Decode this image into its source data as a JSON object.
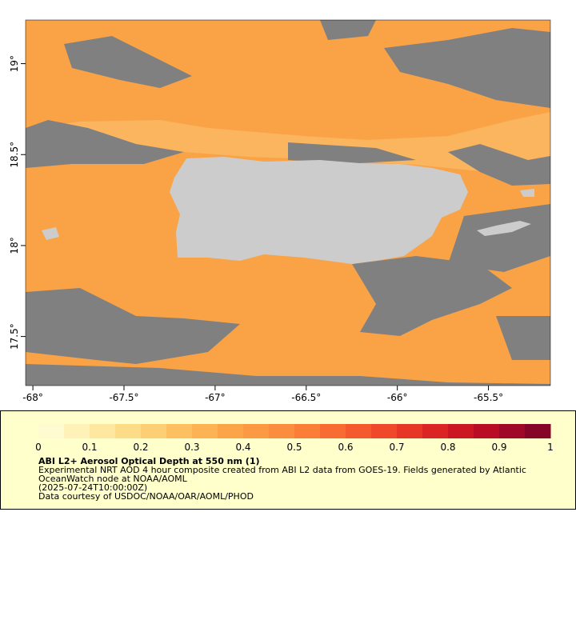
{
  "map": {
    "lonlim": [
      -68.04,
      -65.16
    ],
    "latlim": [
      17.23,
      19.24
    ],
    "lon_ticks": [
      {
        "value": -68,
        "label": "-68°"
      },
      {
        "value": -67.5,
        "label": "-67.5°"
      },
      {
        "value": -67,
        "label": "-67°"
      },
      {
        "value": -66.5,
        "label": "-66.5°"
      },
      {
        "value": -66,
        "label": "-66°"
      },
      {
        "value": -65.5,
        "label": "-65.5°"
      }
    ],
    "lat_ticks": [
      {
        "value": 19,
        "label": "19°"
      },
      {
        "value": 18.5,
        "label": "18.5°"
      },
      {
        "value": 18,
        "label": "18°"
      },
      {
        "value": 17.5,
        "label": "17.5°"
      }
    ]
  },
  "colorbar": {
    "lim": [
      0,
      1
    ],
    "ticks": [
      0,
      0.1,
      0.2,
      0.3,
      0.4,
      0.5,
      0.6,
      0.7,
      0.8,
      0.9,
      1
    ],
    "colors": [
      "#fffbd0",
      "#fff2b8",
      "#fee8a0",
      "#fddc88",
      "#fdcf74",
      "#fdc060",
      "#fdb253",
      "#fca548",
      "#fc9a44",
      "#fb8d3e",
      "#fa7d38",
      "#f86c33",
      "#f55a2e",
      "#ef482a",
      "#e63627",
      "#da2524",
      "#cb1623",
      "#b80d25",
      "#a00827",
      "#850427"
    ]
  },
  "caption": {
    "title": "ABI L2+ Aerosol Optical Depth at 550 nm (1)",
    "lines": [
      "Experimental NRT AOD 4 hour composite created from ABI L2 data from GOES-19. Fields generated by Atlantic",
      "OceanWatch node at NOAA/AOML",
      "(2025-07-24T10:00:00Z)",
      "Data courtesy of USDOC/NOAA/OAR/AOML/PHOD"
    ]
  }
}
